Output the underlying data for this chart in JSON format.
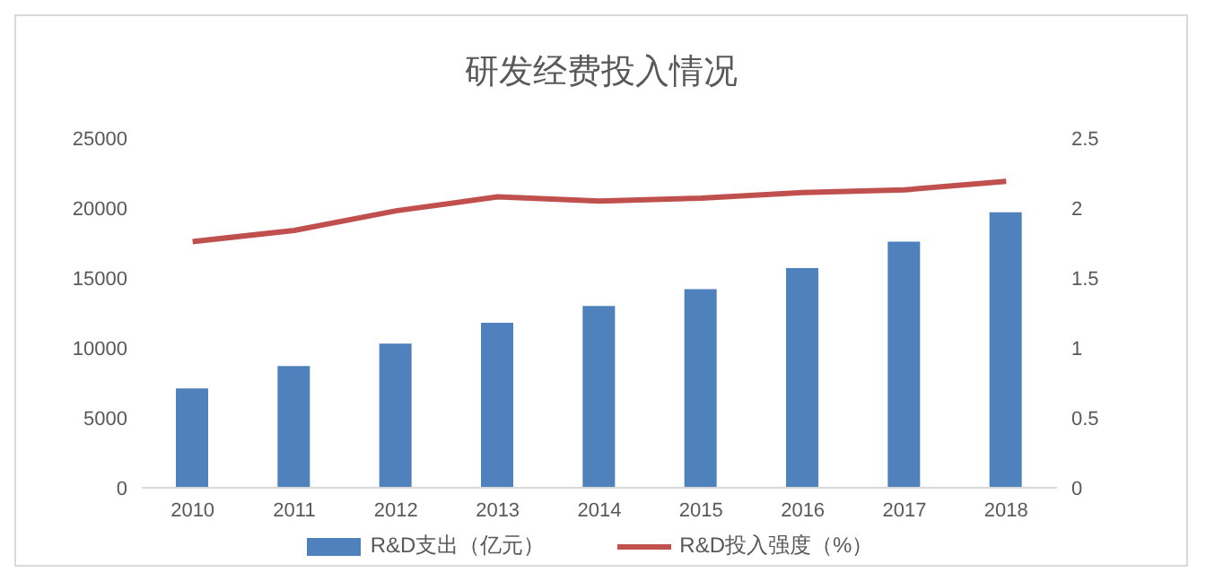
{
  "chart_data": {
    "type": "bar",
    "title": "研发经费投入情况",
    "categories": [
      "2010",
      "2011",
      "2012",
      "2013",
      "2014",
      "2015",
      "2016",
      "2017",
      "2018"
    ],
    "series": [
      {
        "name": "R&D支出（亿元）",
        "color": "#4f81bd",
        "values": [
          7100,
          8700,
          10300,
          11800,
          13000,
          14200,
          15700,
          17600,
          19700
        ]
      },
      {
        "name": "R&D投入强度（%）",
        "type": "line",
        "axis": "y2",
        "color": "#c0504d",
        "values": [
          1.76,
          1.84,
          1.98,
          2.08,
          2.05,
          2.07,
          2.11,
          2.13,
          2.19
        ]
      }
    ],
    "ylim": [
      0,
      25000
    ],
    "yticks": [
      0,
      5000,
      10000,
      15000,
      20000,
      25000
    ],
    "y2lim": [
      0,
      2.5
    ],
    "y2ticks": [
      0,
      0.5,
      1,
      1.5,
      2,
      2.5
    ],
    "grid": false,
    "legend": "bottom",
    "marker": "none",
    "line_style": "solid"
  }
}
